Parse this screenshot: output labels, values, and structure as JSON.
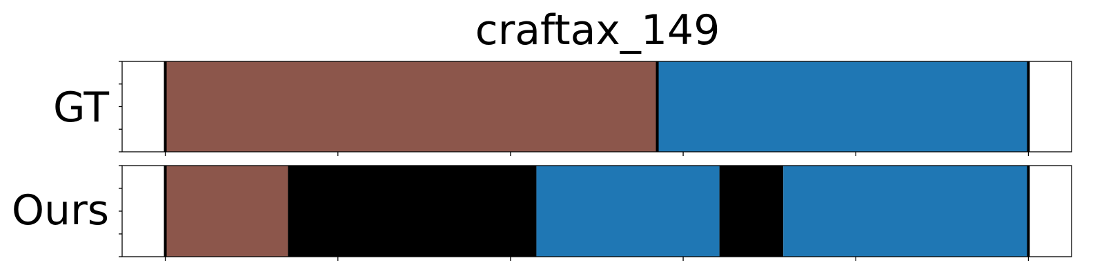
{
  "chart_data": {
    "type": "timeline",
    "title": "craftax_149",
    "xlim": [
      -25,
      525
    ],
    "x_ticks": [
      0,
      100,
      200,
      300,
      400,
      500
    ],
    "rows": [
      {
        "label": "GT",
        "segments": [
          {
            "start": 0,
            "end": 285,
            "color": "#8c564b"
          },
          {
            "start": 285,
            "end": 500,
            "color": "#1f77b4"
          }
        ],
        "boundaries": [
          0,
          285,
          500
        ]
      },
      {
        "label": "Ours",
        "segments": [
          {
            "start": 0,
            "end": 71,
            "color": "#8c564b"
          },
          {
            "start": 71,
            "end": 215,
            "color": "#000000"
          },
          {
            "start": 215,
            "end": 321,
            "color": "#1f77b4"
          },
          {
            "start": 321,
            "end": 358,
            "color": "#000000"
          },
          {
            "start": 358,
            "end": 500,
            "color": "#1f77b4"
          }
        ],
        "boundaries": [
          0,
          500
        ]
      }
    ]
  }
}
